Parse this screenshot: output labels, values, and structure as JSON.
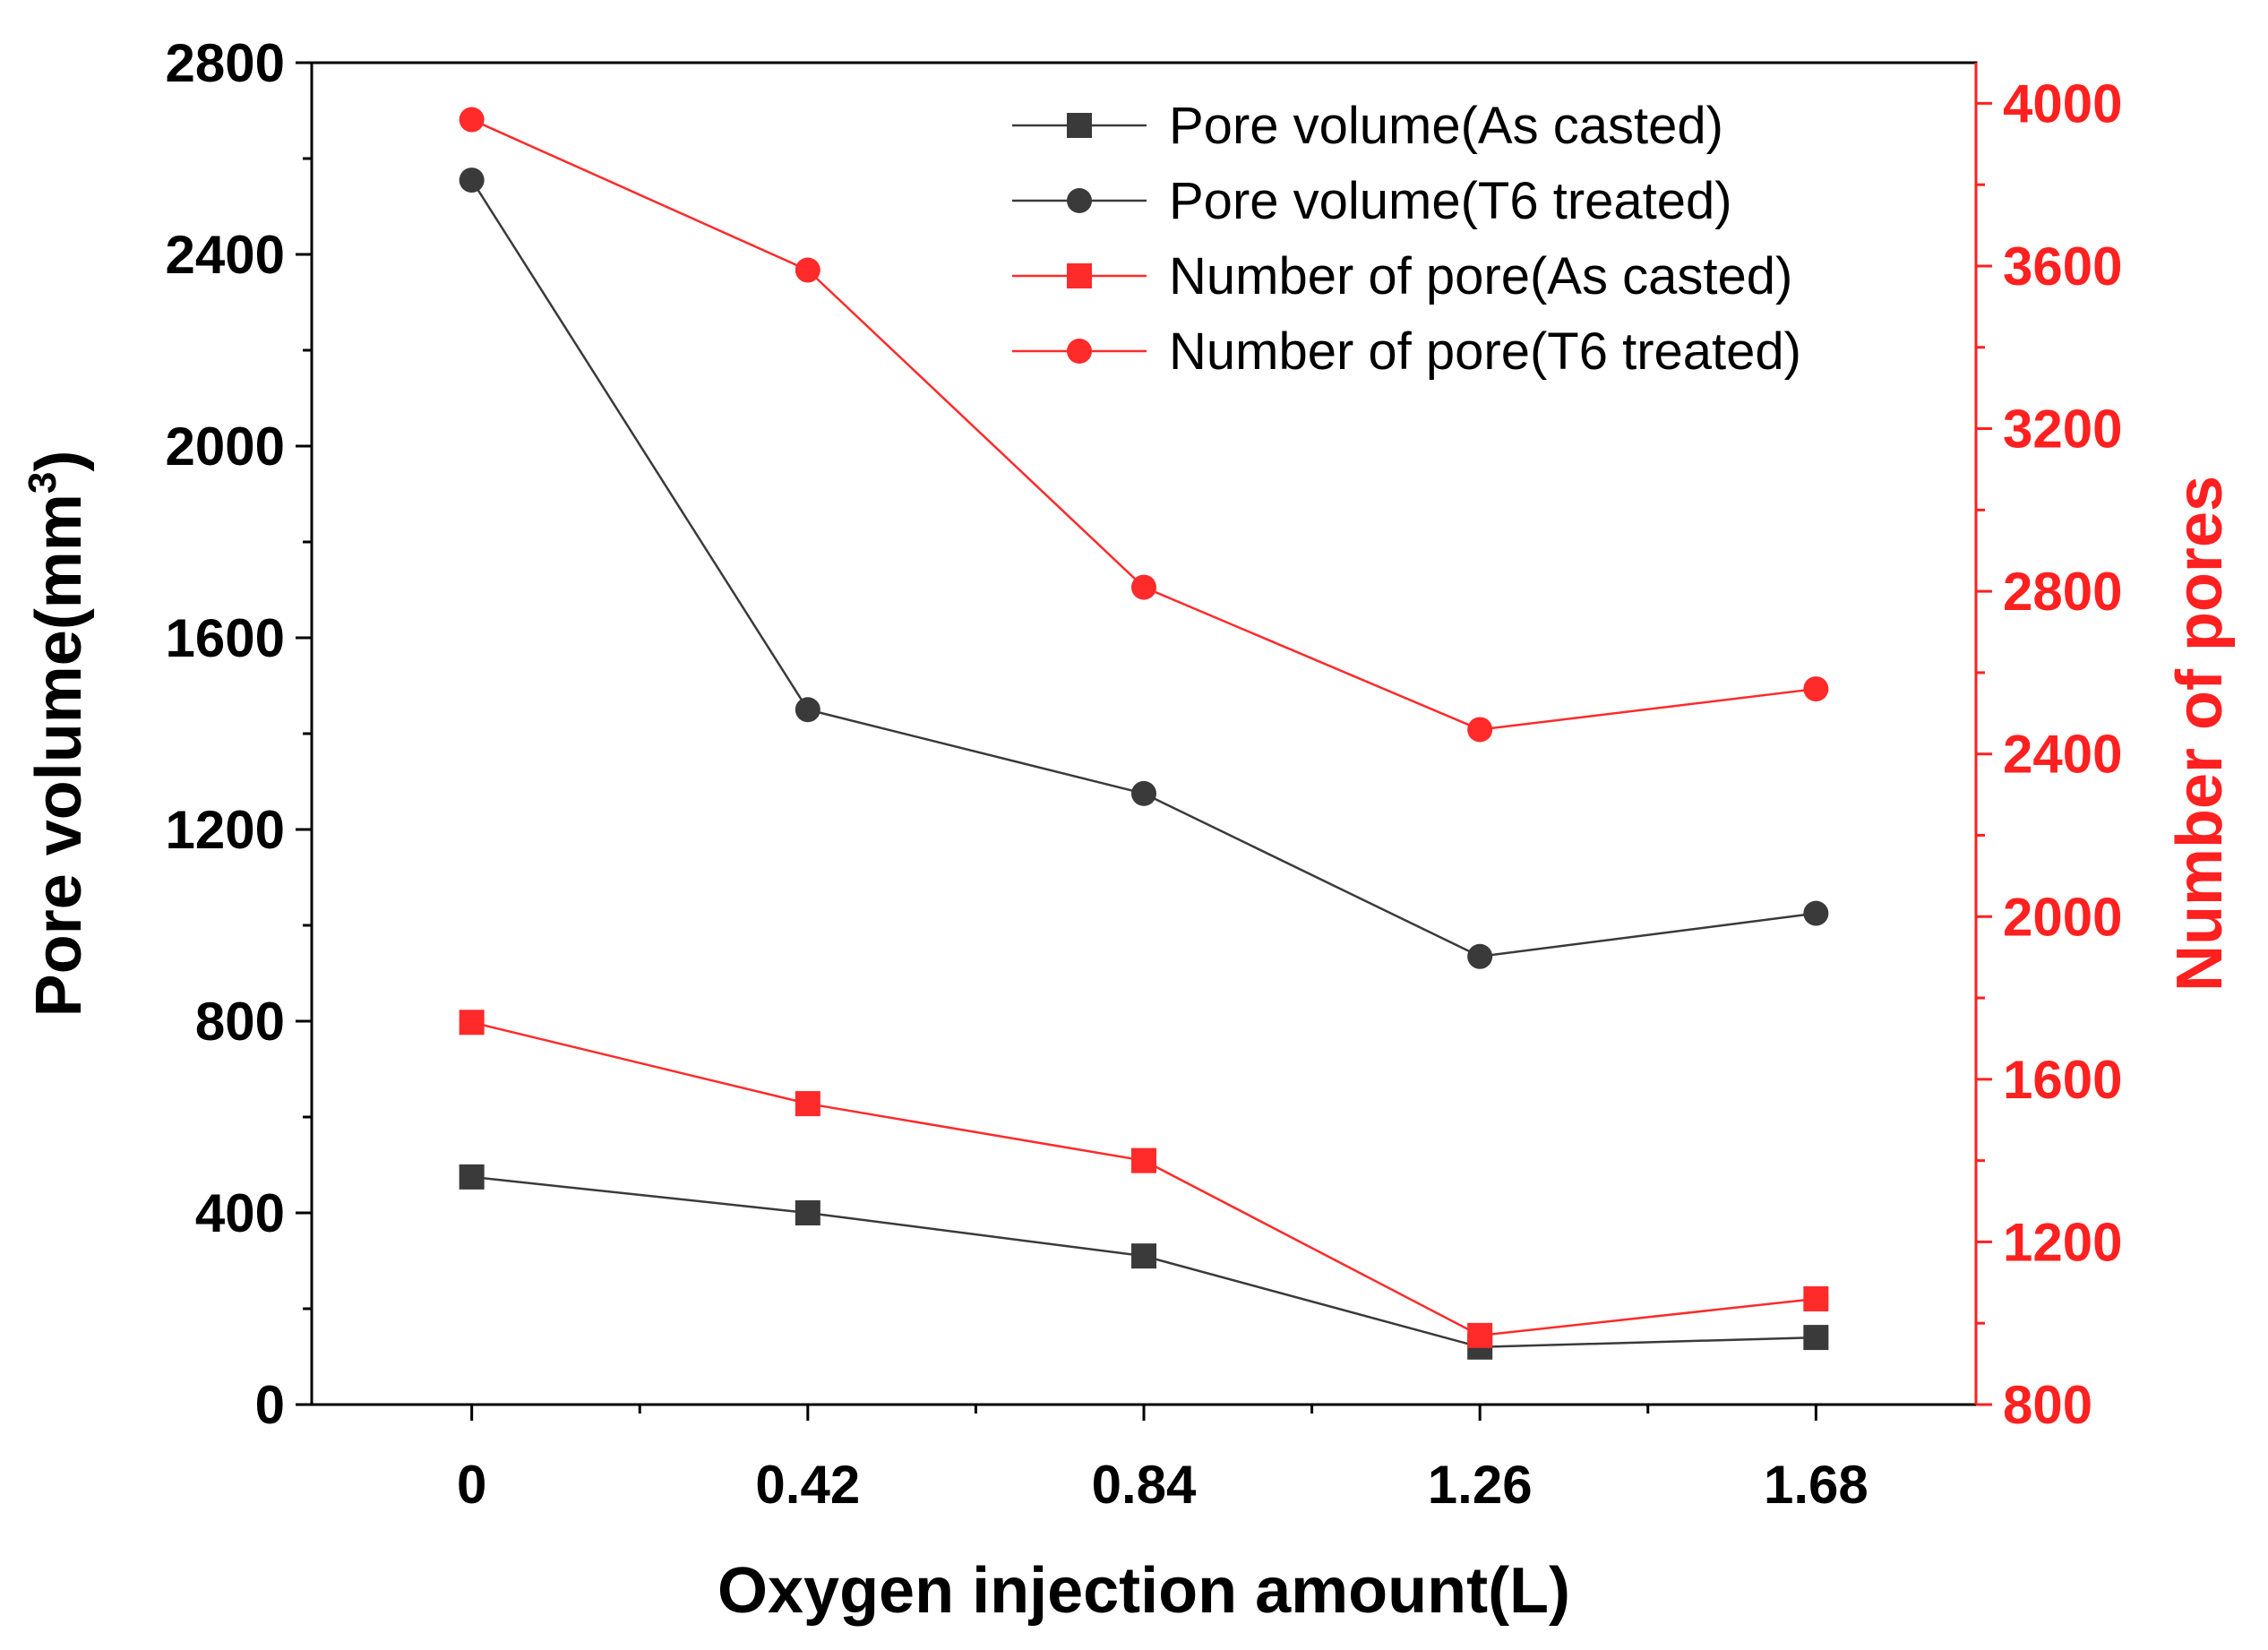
{
  "chart_data": {
    "type": "line",
    "x_label": "Oxygen injection amount(L)",
    "y_label_left_main": "Pore volume(mm",
    "y_label_left_sup": "3",
    "y_label_left_close": ")",
    "y_label_right": "Number of pores",
    "categories": [
      "0",
      "0.42",
      "0.84",
      "1.26",
      "1.68"
    ],
    "x_values": [
      0,
      0.42,
      0.84,
      1.26,
      1.68
    ],
    "xlim": [
      -0.2,
      1.88
    ],
    "y_left_lim": [
      0,
      2800
    ],
    "y_left_ticks": [
      "0",
      "400",
      "800",
      "1200",
      "1600",
      "2000",
      "2400",
      "2800"
    ],
    "y_right_lim": [
      800,
      4100
    ],
    "y_right_ticks": [
      "800",
      "1200",
      "1600",
      "2000",
      "2400",
      "2800",
      "3200",
      "3600",
      "4000"
    ],
    "colors": {
      "black": "#3a3a3a",
      "red": "#ff2a2a"
    },
    "series": [
      {
        "name": "Pore volume(As casted)",
        "axis": "left",
        "marker": "square",
        "color": "#3a3a3a",
        "values": [
          475,
          400,
          310,
          120,
          140
        ]
      },
      {
        "name": "Pore volume(T6 treated)",
        "axis": "left",
        "marker": "circle",
        "color": "#3a3a3a",
        "values": [
          2555,
          1450,
          1275,
          935,
          1025
        ]
      },
      {
        "name": "Number of pore(As casted)",
        "axis": "right",
        "marker": "square",
        "color": "#ff2a2a",
        "values": [
          1740,
          1540,
          1400,
          970,
          1060
        ]
      },
      {
        "name": "Number of pore(T6 treated)",
        "axis": "right",
        "marker": "circle",
        "color": "#ff2a2a",
        "values": [
          3960,
          3590,
          2810,
          2460,
          2560
        ]
      }
    ]
  }
}
